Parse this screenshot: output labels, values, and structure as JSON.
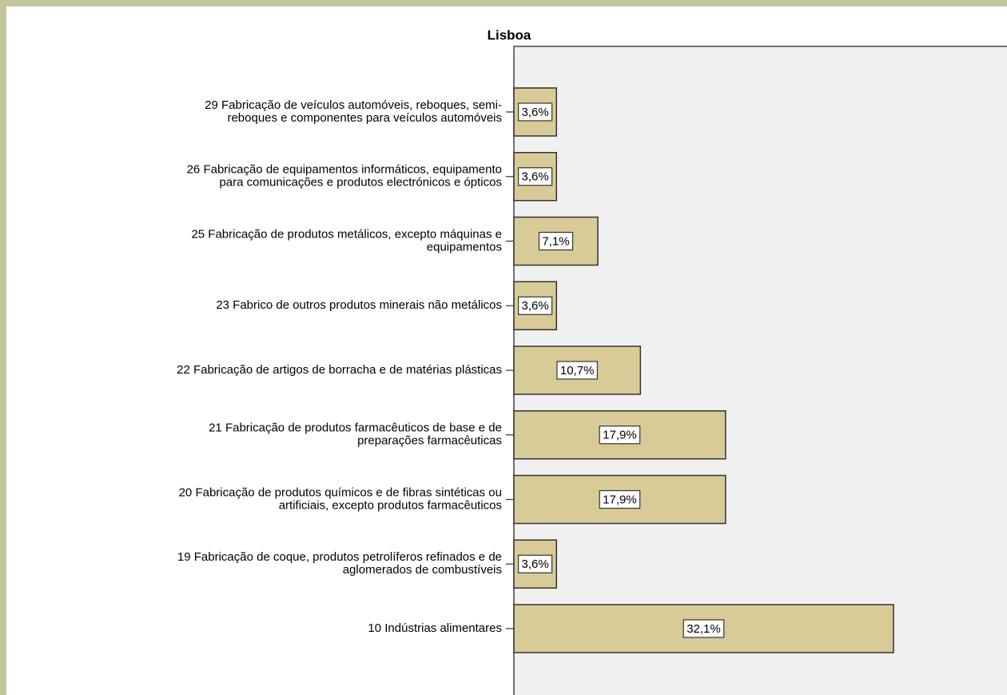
{
  "chart_data": {
    "type": "bar",
    "orientation": "horizontal",
    "title": "Lisboa",
    "categories": [
      [
        "29 Fabricação de veículos automóveis, reboques, semi-",
        "reboques e componentes para veículos automóveis"
      ],
      [
        "26 Fabricação de equipamentos informáticos, equipamento",
        "para comunicações e produtos electrónicos e ópticos"
      ],
      [
        "25 Fabricação de produtos metálicos, excepto máquinas e",
        "equipamentos"
      ],
      [
        "23 Fabrico de outros produtos minerais não metálicos"
      ],
      [
        "22 Fabricação de artigos de borracha e de matérias plásticas"
      ],
      [
        "21 Fabricação de produtos farmacêuticos de base e de",
        "preparações farmacêuticas"
      ],
      [
        "20 Fabricação de produtos químicos e de fibras sintéticas ou",
        "artificiais, excepto produtos farmacêuticos"
      ],
      [
        "19 Fabricação de coque, produtos petrolíferos refinados e de",
        "aglomerados de combustíveis"
      ],
      [
        "10 Indústrias alimentares"
      ]
    ],
    "values": [
      3.6,
      3.6,
      7.1,
      3.6,
      10.7,
      17.9,
      17.9,
      3.6,
      32.1
    ],
    "value_labels": [
      "3,6%",
      "3,6%",
      "7,1%",
      "3,6%",
      "10,7%",
      "17,9%",
      "17,9%",
      "3,6%",
      "32,1%"
    ],
    "color": "#d8cb98",
    "xlim": [
      0,
      41.7
    ]
  }
}
